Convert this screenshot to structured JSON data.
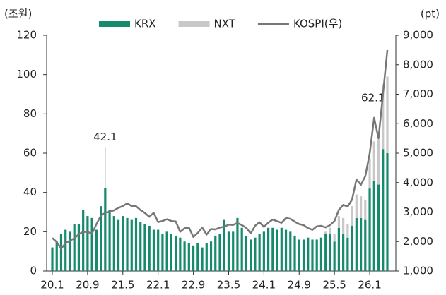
{
  "chart_data": {
    "type": "bar",
    "y_unit": "(조원)",
    "y2_unit": "(pt)",
    "categories": [
      "20.1",
      null,
      null,
      null,
      null,
      null,
      null,
      null,
      "20.9",
      null,
      null,
      null,
      null,
      null,
      null,
      null,
      "21.5",
      null,
      null,
      null,
      null,
      null,
      null,
      null,
      "22.1",
      null,
      null,
      null,
      null,
      null,
      null,
      null,
      "22.9",
      null,
      null,
      null,
      null,
      null,
      null,
      null,
      "23.5",
      null,
      null,
      null,
      null,
      null,
      null,
      null,
      "24.1",
      null,
      null,
      null,
      null,
      null,
      null,
      null,
      "24.9",
      null,
      null,
      null,
      null,
      null,
      null,
      null,
      "25.5",
      null,
      null,
      null,
      null,
      null,
      null,
      null,
      "26.1",
      null,
      null,
      null,
      null
    ],
    "series": [
      {
        "name": "KRX",
        "color": "#168a6c",
        "values": [
          12,
          15,
          19,
          21,
          20,
          24,
          24,
          31,
          28,
          27,
          21,
          33,
          42.1,
          31,
          28,
          26,
          28,
          27,
          26,
          27,
          25,
          24,
          23,
          21,
          21,
          19,
          20,
          19,
          18,
          17,
          15,
          14,
          13,
          14,
          12,
          14,
          15,
          18,
          19,
          26,
          20,
          20,
          27,
          22,
          18,
          16,
          17,
          19,
          20,
          22,
          22,
          21,
          22,
          21,
          20,
          18,
          16,
          16,
          17,
          16,
          16,
          17,
          19,
          19,
          15,
          22,
          19,
          17,
          23,
          27,
          27,
          26,
          42,
          46,
          44,
          62.1,
          60
        ],
        "value_labels": [
          null,
          null,
          null,
          null,
          null,
          null,
          null,
          null,
          null,
          null,
          null,
          null,
          "42.1",
          null,
          null,
          null,
          null,
          null,
          null,
          null,
          null,
          null,
          null,
          null,
          null,
          null,
          null,
          null,
          null,
          null,
          null,
          null,
          null,
          null,
          null,
          null,
          null,
          null,
          null,
          null,
          null,
          null,
          null,
          null,
          null,
          null,
          null,
          null,
          null,
          null,
          null,
          null,
          null,
          null,
          null,
          null,
          null,
          null,
          null,
          null,
          null,
          null,
          null,
          null,
          null,
          null,
          null,
          null,
          null,
          null,
          null,
          null,
          null,
          null,
          null,
          "62.1",
          null
        ]
      },
      {
        "name": "NXT",
        "color": "#c8c8c8",
        "values": [
          null,
          null,
          null,
          null,
          null,
          null,
          null,
          null,
          null,
          null,
          null,
          null,
          null,
          null,
          null,
          null,
          null,
          null,
          null,
          null,
          null,
          null,
          null,
          null,
          null,
          null,
          null,
          null,
          null,
          null,
          null,
          null,
          null,
          null,
          null,
          null,
          null,
          null,
          null,
          null,
          null,
          null,
          null,
          null,
          null,
          null,
          null,
          null,
          null,
          null,
          null,
          null,
          null,
          null,
          null,
          null,
          null,
          null,
          null,
          null,
          null,
          null,
          1,
          3,
          4,
          6,
          8,
          7,
          10,
          12,
          11,
          10,
          15,
          20,
          23,
          33,
          39
        ]
      },
      {
        "name": "KOSPI(우)",
        "color": "#777777",
        "axis": "y2",
        "kind": "line",
        "values": [
          2119,
          1987,
          1754,
          1947,
          2030,
          2108,
          2249,
          2326,
          2328,
          2267,
          2591,
          2873,
          2976,
          3013,
          3061,
          3147,
          3204,
          3296,
          3202,
          3199,
          3069,
          2970,
          2839,
          2977,
          2663,
          2699,
          2757,
          2695,
          2685,
          2332,
          2451,
          2472,
          2155,
          2293,
          2472,
          2236,
          2425,
          2412,
          2476,
          2501,
          2577,
          2564,
          2632,
          2556,
          2465,
          2277,
          2535,
          2655,
          2497,
          2642,
          2747,
          2692,
          2636,
          2798,
          2770,
          2674,
          2593,
          2556,
          2456,
          2399,
          2517,
          2532,
          2481,
          2556,
          2697,
          3071,
          3245,
          3186,
          3425,
          4107,
          3926,
          4214,
          5000,
          6200,
          5500,
          7000,
          8500
        ]
      }
    ],
    "ylim": [
      0,
      120
    ],
    "yticks": [
      0,
      20,
      40,
      60,
      80,
      100,
      120
    ],
    "y2lim": [
      1000,
      9000
    ],
    "y2ticks": [
      {
        "value": 1000,
        "label": "1,000"
      },
      {
        "value": 2000,
        "label": "2,000"
      },
      {
        "value": 3000,
        "label": "3,000"
      },
      {
        "value": 4000,
        "label": "4,000"
      },
      {
        "value": 5000,
        "label": "5,000"
      },
      {
        "value": 6000,
        "label": "6,000"
      },
      {
        "value": 7000,
        "label": "7,000"
      },
      {
        "value": 8000,
        "label": "8,000"
      },
      {
        "value": 9000,
        "label": "9,000"
      }
    ],
    "legend": "top"
  }
}
